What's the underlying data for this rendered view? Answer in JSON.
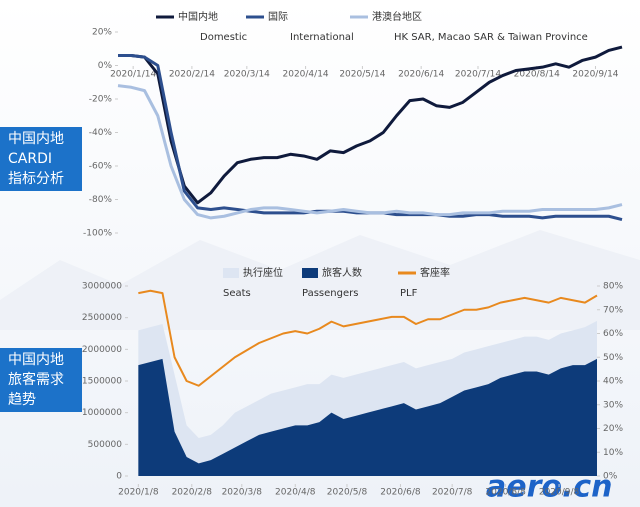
{
  "chart_data": [
    {
      "type": "line",
      "x": [
        "2020/1/6",
        "2020/1/13",
        "2020/1/20",
        "2020/1/27",
        "2020/2/3",
        "2020/2/10",
        "2020/2/17",
        "2020/2/24",
        "2020/3/2",
        "2020/3/9",
        "2020/3/16",
        "2020/3/23",
        "2020/3/30",
        "2020/4/6",
        "2020/4/13",
        "2020/4/20",
        "2020/4/27",
        "2020/5/4",
        "2020/5/11",
        "2020/5/18",
        "2020/5/25",
        "2020/6/1",
        "2020/6/8",
        "2020/6/15",
        "2020/6/22",
        "2020/6/29",
        "2020/7/6",
        "2020/7/13",
        "2020/7/20",
        "2020/7/27",
        "2020/8/3",
        "2020/8/10",
        "2020/8/17",
        "2020/8/24",
        "2020/8/31",
        "2020/9/7",
        "2020/9/14",
        "2020/9/21",
        "2020/9/28"
      ],
      "series": [
        {
          "name": "中国内地",
          "name_en": "Domestic",
          "color": "#0f1a3c",
          "values": [
            6,
            6,
            5,
            -5,
            -45,
            -72,
            -82,
            -76,
            -66,
            -58,
            -56,
            -55,
            -55,
            -53,
            -54,
            -56,
            -51,
            -52,
            -48,
            -45,
            -40,
            -30,
            -21,
            -20,
            -24,
            -25,
            -22,
            -16,
            -10,
            -6,
            -3,
            -2,
            -1,
            1,
            -1,
            3,
            5,
            9,
            11
          ]
        },
        {
          "name": "国际",
          "name_en": "International",
          "color": "#2d4f8e",
          "values": [
            6,
            6,
            5,
            0,
            -40,
            -75,
            -85,
            -86,
            -85,
            -86,
            -87,
            -88,
            -88,
            -88,
            -88,
            -87,
            -87,
            -87,
            -88,
            -88,
            -88,
            -89,
            -89,
            -89,
            -89,
            -90,
            -90,
            -89,
            -89,
            -90,
            -90,
            -90,
            -91,
            -90,
            -90,
            -90,
            -90,
            -90,
            -92
          ]
        },
        {
          "name": "港澳台地区",
          "name_en": "HK SAR, Macao SAR & Taiwan Province",
          "color": "#a9bfe0",
          "values": [
            -12,
            -13,
            -15,
            -30,
            -60,
            -80,
            -89,
            -91,
            -90,
            -88,
            -86,
            -85,
            -85,
            -86,
            -87,
            -88,
            -87,
            -86,
            -87,
            -88,
            -88,
            -87,
            -88,
            -88,
            -89,
            -89,
            -88,
            -88,
            -88,
            -87,
            -87,
            -87,
            -86,
            -86,
            -86,
            -86,
            -86,
            -85,
            -83
          ]
        }
      ],
      "xlim": [
        "2020/1/6",
        "2020/9/28"
      ],
      "xticks": [
        "2020/1/14",
        "2020/2/14",
        "2020/3/14",
        "2020/4/14",
        "2020/5/14",
        "2020/6/14",
        "2020/7/14",
        "2020/8/14",
        "2020/9/14"
      ],
      "ylim": [
        -100,
        20
      ],
      "yticks": [
        {
          "value": 20,
          "label": "20%"
        },
        {
          "value": 0,
          "label": "0%"
        },
        {
          "value": -20,
          "label": "-20%"
        },
        {
          "value": -40,
          "label": "-40%"
        },
        {
          "value": -60,
          "label": "-60%"
        },
        {
          "value": -80,
          "label": "-80%"
        },
        {
          "value": -100,
          "label": "-100%"
        }
      ],
      "grid": false
    },
    {
      "type": "area",
      "x": [
        "2020/1/8",
        "2020/1/15",
        "2020/1/22",
        "2020/1/29",
        "2020/2/5",
        "2020/2/12",
        "2020/2/19",
        "2020/2/26",
        "2020/3/4",
        "2020/3/11",
        "2020/3/18",
        "2020/3/25",
        "2020/4/1",
        "2020/4/8",
        "2020/4/15",
        "2020/4/22",
        "2020/4/29",
        "2020/5/6",
        "2020/5/13",
        "2020/5/20",
        "2020/5/27",
        "2020/6/3",
        "2020/6/10",
        "2020/6/17",
        "2020/6/24",
        "2020/7/1",
        "2020/7/8",
        "2020/7/15",
        "2020/7/22",
        "2020/7/29",
        "2020/8/5",
        "2020/8/12",
        "2020/8/19",
        "2020/8/26",
        "2020/9/2",
        "2020/9/9",
        "2020/9/16",
        "2020/9/23",
        "2020/9/30"
      ],
      "series": [
        {
          "name": "执行座位",
          "name_en": "Seats",
          "color": "#dde5f2",
          "values": [
            2300000,
            2350000,
            2400000,
            1600000,
            800000,
            600000,
            650000,
            800000,
            1000000,
            1100000,
            1200000,
            1300000,
            1350000,
            1400000,
            1450000,
            1450000,
            1600000,
            1550000,
            1600000,
            1650000,
            1700000,
            1750000,
            1800000,
            1700000,
            1750000,
            1800000,
            1850000,
            1950000,
            2000000,
            2050000,
            2100000,
            2150000,
            2200000,
            2200000,
            2150000,
            2250000,
            2300000,
            2350000,
            2450000
          ]
        },
        {
          "name": "旅客人数",
          "name_en": "Passengers",
          "color": "#0d3b7a",
          "values": [
            1750000,
            1800000,
            1850000,
            700000,
            300000,
            200000,
            250000,
            350000,
            450000,
            550000,
            650000,
            700000,
            750000,
            800000,
            800000,
            850000,
            1000000,
            900000,
            950000,
            1000000,
            1050000,
            1100000,
            1150000,
            1050000,
            1100000,
            1150000,
            1250000,
            1350000,
            1400000,
            1450000,
            1550000,
            1600000,
            1650000,
            1650000,
            1600000,
            1700000,
            1750000,
            1750000,
            1850000
          ]
        },
        {
          "name": "客座率",
          "name_en": "PLF",
          "color": "#e8891e",
          "type": "line",
          "axis": "y2",
          "values": [
            77,
            78,
            77,
            50,
            40,
            38,
            42,
            46,
            50,
            53,
            56,
            58,
            60,
            61,
            60,
            62,
            65,
            63,
            64,
            65,
            66,
            67,
            67,
            64,
            66,
            66,
            68,
            70,
            70,
            71,
            73,
            74,
            75,
            74,
            73,
            75,
            74,
            73,
            76
          ]
        }
      ],
      "xlim": [
        "2020/1/2",
        "2020/9/30"
      ],
      "xticks": [
        "2020/1/8",
        "2020/2/8",
        "2020/3/8",
        "2020/4/8",
        "2020/5/8",
        "2020/6/8",
        "2020/7/8",
        "2020/8/8",
        "2020/9/8"
      ],
      "ylim": [
        0,
        3000000
      ],
      "yticks": [
        0,
        500000,
        1000000,
        1500000,
        2000000,
        2500000,
        3000000
      ],
      "y2lim": [
        0,
        80
      ],
      "y2ticks": [
        {
          "value": 0,
          "label": "0%"
        },
        {
          "value": 10,
          "label": "10%"
        },
        {
          "value": 20,
          "label": "20%"
        },
        {
          "value": 30,
          "label": "30%"
        },
        {
          "value": 40,
          "label": "40%"
        },
        {
          "value": 50,
          "label": "50%"
        },
        {
          "value": 60,
          "label": "60%"
        },
        {
          "value": 70,
          "label": "70%"
        },
        {
          "value": 80,
          "label": "80%"
        }
      ],
      "grid": false
    }
  ],
  "side_labels": [
    [
      "中国内地",
      "CARDI",
      "指标分析"
    ],
    [
      "中国内地",
      "旅客需求",
      "趋势"
    ]
  ],
  "watermark": "aero.cn"
}
